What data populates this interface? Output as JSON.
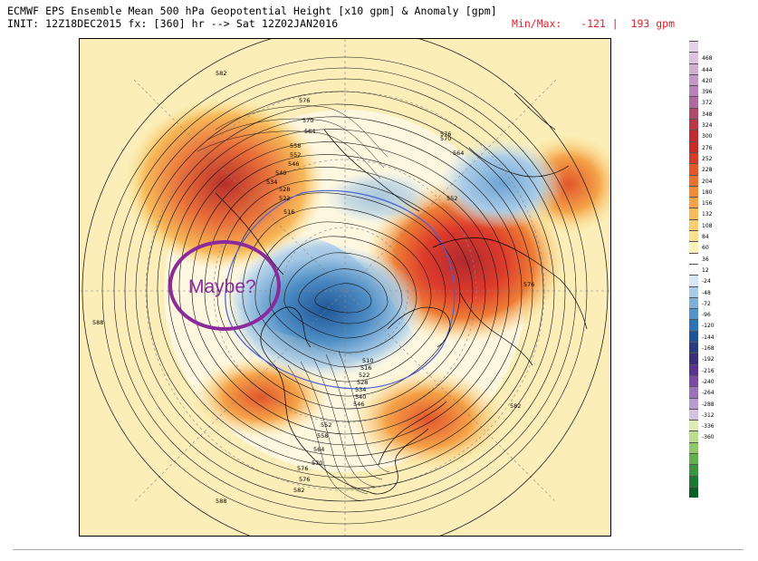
{
  "header": {
    "line1": "ECMWF EPS Ensemble Mean 500 hPa Geopotential Height [x10 gpm] & Anomaly [gpm]",
    "line2": "INIT: 12Z18DEC2015 fx: [360] hr --> Sat 12Z02JAN2016",
    "minmax": "Min/Max:   -121 |  193 gpm"
  },
  "annotation": {
    "text": "Maybe?",
    "color": "#8b2a9a"
  },
  "contour_labels": [
    "588",
    "582",
    "576",
    "570",
    "564",
    "558",
    "552",
    "546",
    "540",
    "534",
    "528",
    "522",
    "516",
    "576",
    "570",
    "564",
    "552",
    "576",
    "582",
    "588",
    "576",
    "570",
    "564",
    "558",
    "552",
    "546",
    "540",
    "534",
    "528",
    "522",
    "516",
    "510",
    "576",
    "582"
  ],
  "colorbar": {
    "colors": [
      "#e6d2e6",
      "#dcc2dc",
      "#d0aed0",
      "#c498c4",
      "#b882b8",
      "#ae6a9e",
      "#b04a6a",
      "#b83845",
      "#c02a30",
      "#cc2a28",
      "#d83a2a",
      "#e4562c",
      "#ec7030",
      "#f28a3a",
      "#f5a248",
      "#f7b95a",
      "#f9cd72",
      "#fbe08f",
      "#fdf0b6",
      "#ffffff",
      "#ffffff",
      "#d6e6f2",
      "#a9cbe7",
      "#7fb0da",
      "#5594c9",
      "#2f72b5",
      "#1f5596",
      "#283d82",
      "#3b2d7a",
      "#5a3290",
      "#7a4ca6",
      "#9a72bc",
      "#b89ccf",
      "#d3c2e1",
      "#dcecb4",
      "#b9dc8e",
      "#8fc86a",
      "#64b04e",
      "#3a9440",
      "#1a7a34",
      "#0c5e28"
    ],
    "labels": [
      "",
      "468",
      "444",
      "420",
      "396",
      "372",
      "348",
      "324",
      "300",
      "276",
      "252",
      "228",
      "204",
      "180",
      "156",
      "132",
      "108",
      "84",
      "60",
      "36",
      "12",
      "-24",
      "-48",
      "-72",
      "-96",
      "-120",
      "-144",
      "-168",
      "-192",
      "-216",
      "-240",
      "-264",
      "-288",
      "-312",
      "-336",
      "-360",
      "",
      "",
      "",
      "",
      ""
    ]
  }
}
